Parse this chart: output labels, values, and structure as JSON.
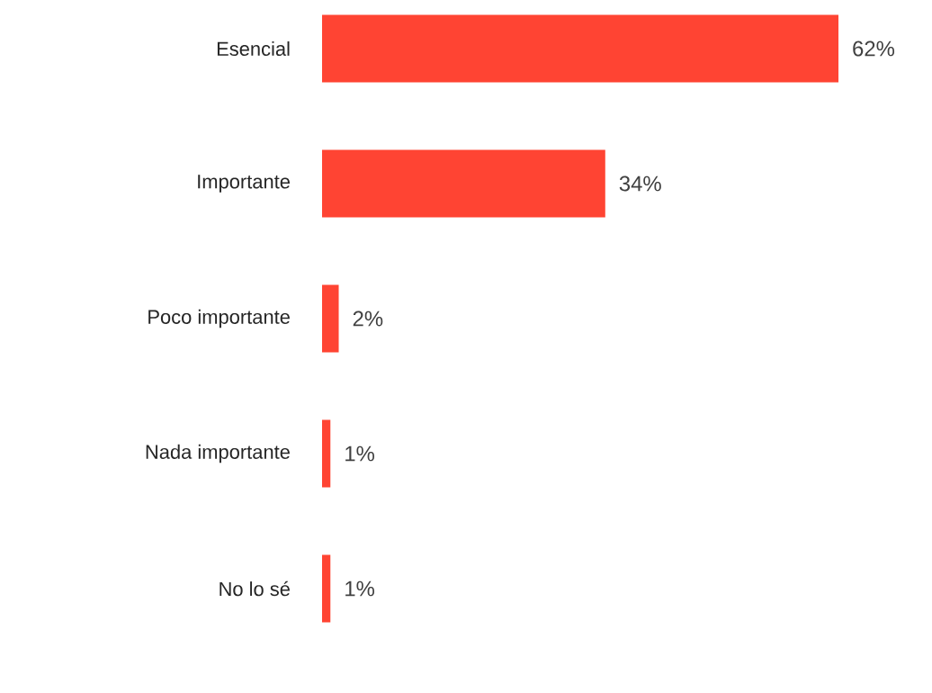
{
  "chart_data": {
    "type": "bar",
    "orientation": "horizontal",
    "color": "#ff4433",
    "categories": [
      "Esencial",
      "Importante",
      "Poco importante",
      "Nada importante",
      "No lo sé"
    ],
    "values": [
      62,
      34,
      2,
      1,
      1
    ],
    "value_labels": [
      "62%",
      "34%",
      "2%",
      "1%",
      "1%"
    ]
  }
}
